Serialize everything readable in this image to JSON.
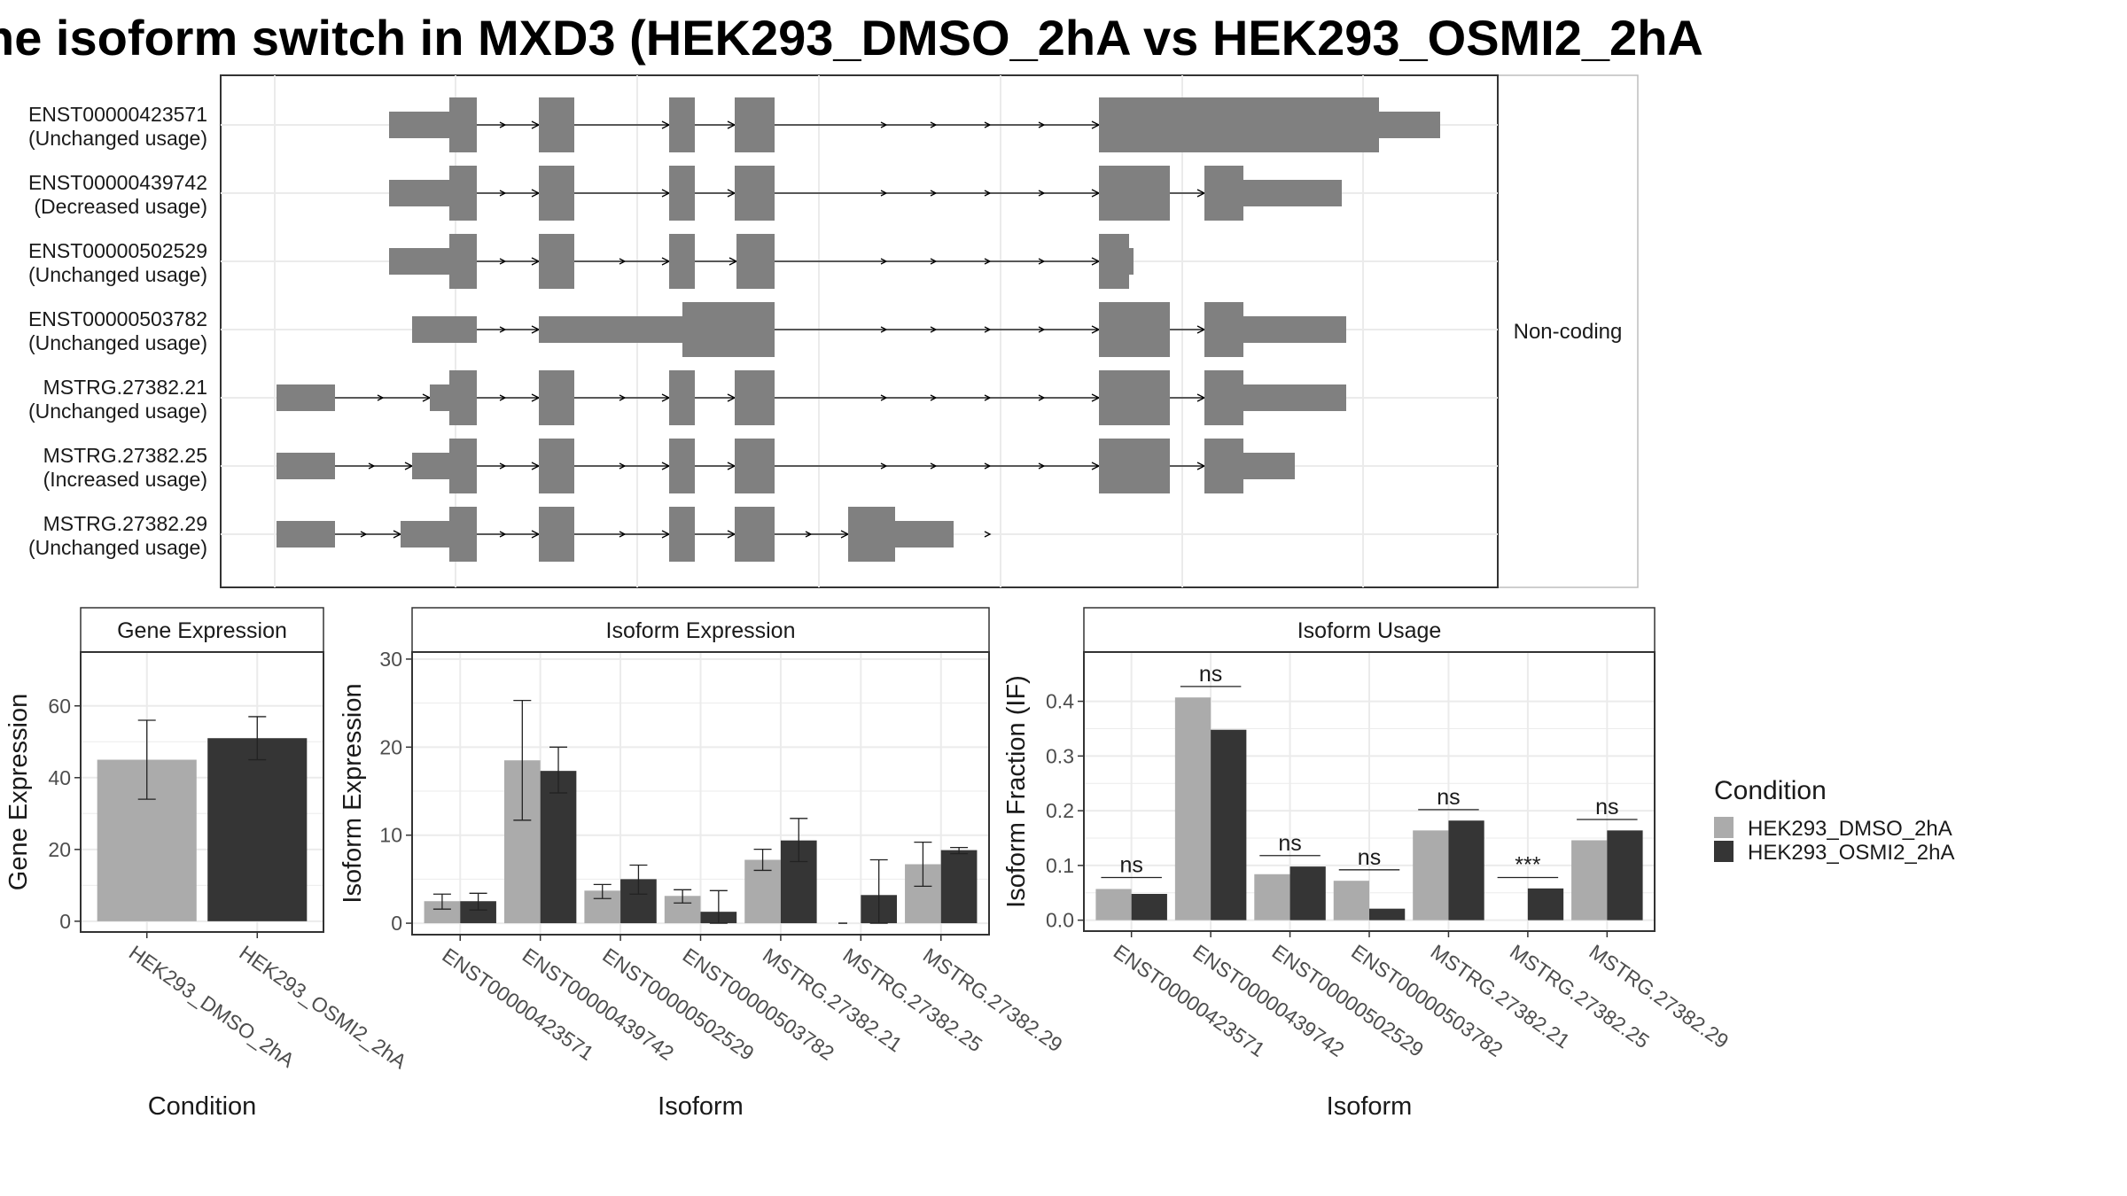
{
  "title": "he isoform switch in MXD3 (HEK293_DMSO_2hA vs HEK293_OSMI2_2hA",
  "colors": {
    "dmso": "#ababab",
    "osmi": "#353535",
    "structure": "#808080",
    "grid": "#ebebeb",
    "panel_border": "#333333",
    "strip_border": "#bdbdbd"
  },
  "structure_panel": {
    "facet_label": "Non-coding",
    "transcripts": [
      {
        "id": "ENST00000423571",
        "usage": "(Unchanged usage)"
      },
      {
        "id": "ENST00000439742",
        "usage": "(Decreased usage)"
      },
      {
        "id": "ENST00000502529",
        "usage": "(Unchanged usage)"
      },
      {
        "id": "ENST00000503782",
        "usage": "(Unchanged usage)"
      },
      {
        "id": "MSTRG.27382.21",
        "usage": "(Unchanged usage)"
      },
      {
        "id": "MSTRG.27382.25",
        "usage": "(Increased usage)"
      },
      {
        "id": "MSTRG.27382.29",
        "usage": "(Unchanged usage)"
      }
    ]
  },
  "legend": {
    "title": "Condition",
    "entries": [
      "HEK293_DMSO_2hA",
      "HEK293_OSMI2_2hA"
    ]
  },
  "chart_data": [
    {
      "type": "bar",
      "panel_title": "Gene Expression",
      "xlabel": "Condition",
      "ylabel": "Gene Expression",
      "categories": [
        "HEK293_DMSO_2hA",
        "HEK293_OSMI2_2hA"
      ],
      "values": [
        45,
        51
      ],
      "error_low": [
        34,
        45
      ],
      "error_high": [
        56,
        57
      ],
      "ylim": [
        -3,
        75
      ],
      "yticks": [
        0,
        20,
        40,
        60
      ]
    },
    {
      "type": "bar",
      "panel_title": "Isoform Expression",
      "xlabel": "Isoform",
      "ylabel": "Isoform Expression",
      "categories": [
        "ENST00000423571",
        "ENST00000439742",
        "ENST00000502529",
        "ENST00000503782",
        "MSTRG.27382.21",
        "MSTRG.27382.25",
        "MSTRG.27382.29"
      ],
      "series": [
        {
          "name": "HEK293_DMSO_2hA",
          "values": [
            2.5,
            18.5,
            3.7,
            3.1,
            7.2,
            0,
            6.7
          ],
          "error_low": [
            1.6,
            11.7,
            2.8,
            2.3,
            6.0,
            0,
            4.2
          ],
          "error_high": [
            3.3,
            25.3,
            4.4,
            3.8,
            8.4,
            0,
            9.2
          ]
        },
        {
          "name": "HEK293_OSMI2_2hA",
          "values": [
            2.5,
            17.3,
            5.0,
            1.3,
            9.4,
            3.2,
            8.3
          ],
          "error_low": [
            1.5,
            14.8,
            3.3,
            0,
            7.0,
            0,
            7.9
          ],
          "error_high": [
            3.4,
            20.0,
            6.6,
            3.7,
            11.9,
            7.2,
            8.6
          ]
        }
      ],
      "ylim": [
        -1.3,
        30.8
      ],
      "yticks": [
        0,
        10,
        20,
        30
      ]
    },
    {
      "type": "bar",
      "panel_title": "Isoform Usage",
      "xlabel": "Isoform",
      "ylabel": "Isoform Fraction (IF)",
      "categories": [
        "ENST00000423571",
        "ENST00000439742",
        "ENST00000502529",
        "ENST00000503782",
        "MSTRG.27382.21",
        "MSTRG.27382.25",
        "MSTRG.27382.29"
      ],
      "series": [
        {
          "name": "HEK293_DMSO_2hA",
          "values": [
            0.057,
            0.407,
            0.084,
            0.072,
            0.164,
            0,
            0.146
          ]
        },
        {
          "name": "HEK293_OSMI2_2hA",
          "values": [
            0.048,
            0.348,
            0.098,
            0.021,
            0.182,
            0.058,
            0.164
          ]
        }
      ],
      "annotations": [
        {
          "label": "ns",
          "y": 0.078
        },
        {
          "label": "ns",
          "y": 0.427
        },
        {
          "label": "ns",
          "y": 0.118
        },
        {
          "label": "ns",
          "y": 0.092
        },
        {
          "label": "ns",
          "y": 0.202
        },
        {
          "label": "***",
          "y": 0.078
        },
        {
          "label": "ns",
          "y": 0.184
        }
      ],
      "ylim": [
        -0.02,
        0.49
      ],
      "yticks": [
        0.0,
        0.1,
        0.2,
        0.3,
        0.4
      ],
      "ytick_labels": [
        "0.0",
        "0.1",
        "0.2",
        "0.3",
        "0.4"
      ]
    }
  ]
}
